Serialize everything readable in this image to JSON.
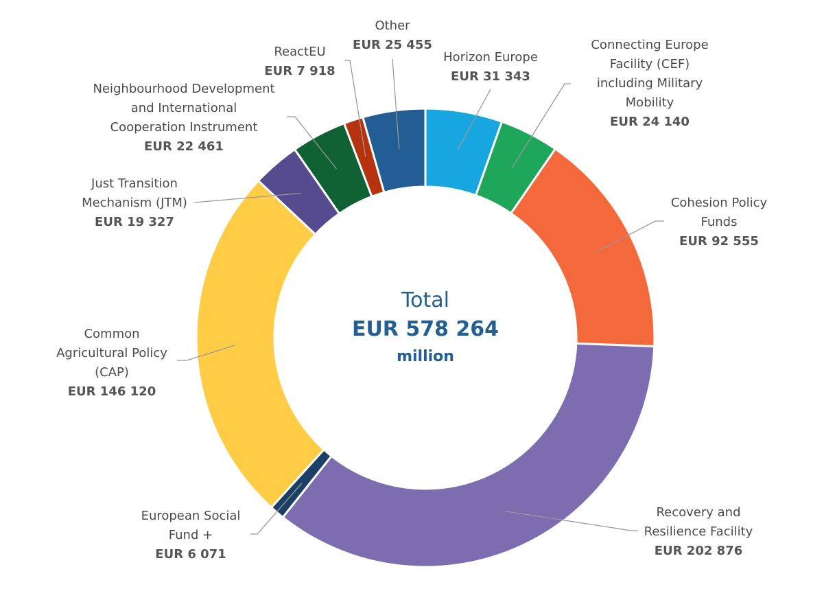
{
  "chart_data": {
    "type": "donut",
    "center_title": "Total",
    "center_value_label": "EUR 578 264",
    "center_unit": "million",
    "categories": [
      "Horizon Europe",
      "Connecting Europe\nFacility (CEF)\nincluding Military\nMobility",
      "Cohesion Policy\nFunds",
      "Recovery and\nResilience Facility",
      "European Social\nFund +",
      "Common\nAgricultural Policy\n(CAP)",
      "Just Transition\nMechanism (JTM)",
      "Neighbourhood Development\nand International\nCooperation Instrument",
      "ReactEU",
      "Other"
    ],
    "values": [
      31343,
      24140,
      92555,
      202876,
      6071,
      146120,
      19327,
      22461,
      7918,
      25455
    ],
    "value_labels": [
      "EUR 31 343",
      "EUR 24 140",
      "EUR 92 555",
      "EUR 202 876",
      "EUR 6 071",
      "EUR 146 120",
      "EUR 19 327",
      "EUR 22 461",
      "EUR 7 918",
      "EUR 25 455"
    ],
    "colors": [
      "#17a6e0",
      "#1ea65a",
      "#f4693c",
      "#7b6db0",
      "#1c3f66",
      "#fecc45",
      "#574b8f",
      "#106133",
      "#b7320f",
      "#225e94"
    ]
  }
}
